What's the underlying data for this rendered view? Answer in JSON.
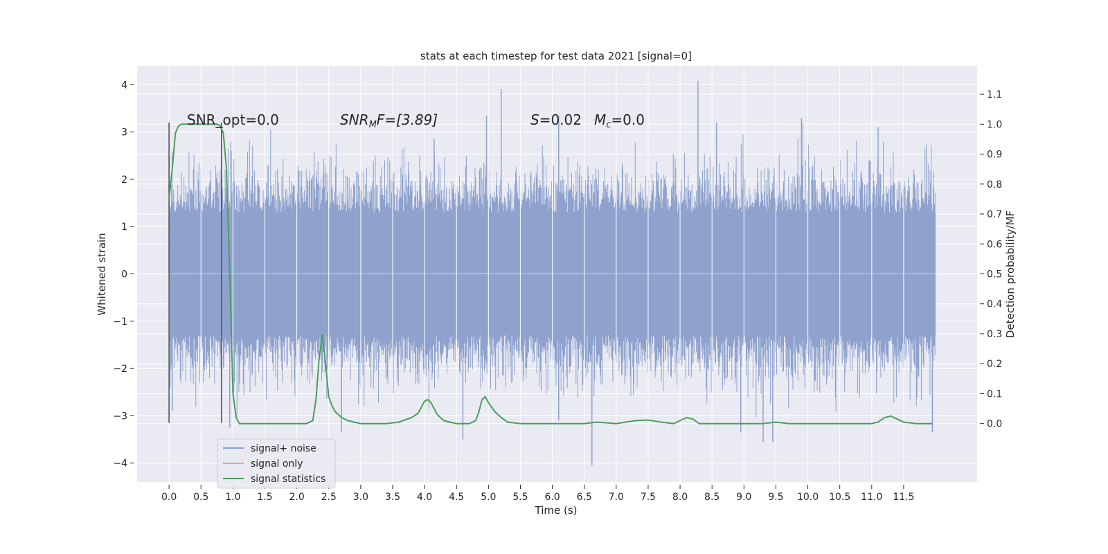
{
  "chart_data": {
    "type": "line",
    "title": "stats at each timestep for test data 2021 [signal=0]",
    "xlabel": "Time (s)",
    "ylabel": "Whitened strain",
    "ylabel_right": "Detection probability/MF",
    "xlim": [
      -0.5,
      12.65
    ],
    "ylim": [
      -4.4,
      4.4
    ],
    "ylim_right": [
      -0.195,
      1.195
    ],
    "x_ticks": [
      "0.0",
      "0.5",
      "1.0",
      "1.5",
      "2.0",
      "2.5",
      "3.0",
      "3.5",
      "4.0",
      "4.5",
      "5.0",
      "5.5",
      "6.0",
      "6.5",
      "7.0",
      "7.5",
      "8.0",
      "8.5",
      "9.0",
      "9.5",
      "10.0",
      "10.5",
      "11.0",
      "11.5"
    ],
    "y_ticks": [
      "4",
      "3",
      "2",
      "1",
      "0",
      "−1",
      "−2",
      "−3",
      "−4"
    ],
    "y_ticks_right": [
      "1.1",
      "1.0",
      "0.9",
      "0.8",
      "0.7",
      "0.6",
      "0.5",
      "0.4",
      "0.3",
      "0.2",
      "0.1",
      "0.0"
    ],
    "grid": true,
    "legend_position": "lower-left",
    "legend": [
      "signal+ noise",
      "signal only",
      "signal statistics"
    ],
    "colors": {
      "background": "#eaeaf2",
      "noise": "#8ea2cd",
      "signal_only": "#e5a98c",
      "statistics": "#4a9e5c",
      "marker_lines": "#555555"
    },
    "annotations": {
      "snr_opt": "SNR_opt=0.0",
      "snr_mf_label": "SNR",
      "snr_mf_sub": "M",
      "snr_mf_rest": "F=[3.89]",
      "s_label": "S",
      "s_value": "=0.02",
      "mc_label": "M",
      "mc_sub": "c",
      "mc_value": "=0.0"
    },
    "marker_lines_x": [
      0.0,
      0.82
    ],
    "noise_duration": 12.0,
    "noise_envelope": 1.3,
    "signal_statistics": {
      "x": [
        0.0,
        0.05,
        0.1,
        0.15,
        0.2,
        0.3,
        0.5,
        0.6,
        0.7,
        0.75,
        0.8,
        0.85,
        0.9,
        0.95,
        1.0,
        1.05,
        1.1,
        1.5,
        2.0,
        2.15,
        2.25,
        2.3,
        2.35,
        2.4,
        2.45,
        2.5,
        2.55,
        2.6,
        2.7,
        2.8,
        3.0,
        3.4,
        3.6,
        3.8,
        3.9,
        4.0,
        4.05,
        4.1,
        4.2,
        4.3,
        4.5,
        4.7,
        4.8,
        4.85,
        4.9,
        4.95,
        5.0,
        5.1,
        5.2,
        5.3,
        5.5,
        5.8,
        6.0,
        6.2,
        6.5,
        6.7,
        7.0,
        7.3,
        7.5,
        7.7,
        7.9,
        8.0,
        8.1,
        8.2,
        8.3,
        8.5,
        8.8,
        9.0,
        9.3,
        9.5,
        9.7,
        10.0,
        10.5,
        11.0,
        11.1,
        11.2,
        11.3,
        11.4,
        11.5,
        11.7,
        11.95
      ],
      "y": [
        0.75,
        0.85,
        0.97,
        0.995,
        1.0,
        1.0,
        1.0,
        1.0,
        1.0,
        1.0,
        0.995,
        0.97,
        0.85,
        0.5,
        0.1,
        0.02,
        0.0,
        0.0,
        0.0,
        0.0,
        0.01,
        0.08,
        0.22,
        0.3,
        0.2,
        0.09,
        0.06,
        0.04,
        0.02,
        0.01,
        0.0,
        0.0,
        0.005,
        0.02,
        0.035,
        0.075,
        0.08,
        0.07,
        0.03,
        0.01,
        0.0,
        0.0,
        0.01,
        0.04,
        0.08,
        0.09,
        0.07,
        0.04,
        0.02,
        0.005,
        0.0,
        0.0,
        0.0,
        0.0,
        0.0,
        0.005,
        0.0,
        0.01,
        0.012,
        0.005,
        0.0,
        0.01,
        0.02,
        0.015,
        0.0,
        0.0,
        0.0,
        0.0,
        0.0,
        0.005,
        0.0,
        0.0,
        0.0,
        0.0,
        0.005,
        0.02,
        0.025,
        0.015,
        0.005,
        0.0,
        0.0
      ]
    },
    "noise_spikes": [
      {
        "x": 5.2,
        "y": 3.9
      },
      {
        "x": 8.28,
        "y": 4.08
      },
      {
        "x": 0.0,
        "y": 2.5
      },
      {
        "x": 4.97,
        "y": 3.35
      },
      {
        "x": 6.1,
        "y": 3.35
      },
      {
        "x": 4.15,
        "y": 2.85
      },
      {
        "x": 8.57,
        "y": 3.2
      },
      {
        "x": 1.55,
        "y": 2.3
      },
      {
        "x": 9.9,
        "y": 3.3
      },
      {
        "x": 11.1,
        "y": 3.1
      },
      {
        "x": 6.62,
        "y": -4.05
      },
      {
        "x": 9.3,
        "y": -3.55
      },
      {
        "x": 9.45,
        "y": -3.55
      },
      {
        "x": 8.95,
        "y": -3.35
      },
      {
        "x": 2.7,
        "y": -3.35
      },
      {
        "x": 4.6,
        "y": -3.5
      },
      {
        "x": 11.95,
        "y": -3.35
      },
      {
        "x": 0.95,
        "y": -3.25
      },
      {
        "x": 6.1,
        "y": -3.1
      },
      {
        "x": 0.05,
        "y": -2.9
      }
    ]
  }
}
